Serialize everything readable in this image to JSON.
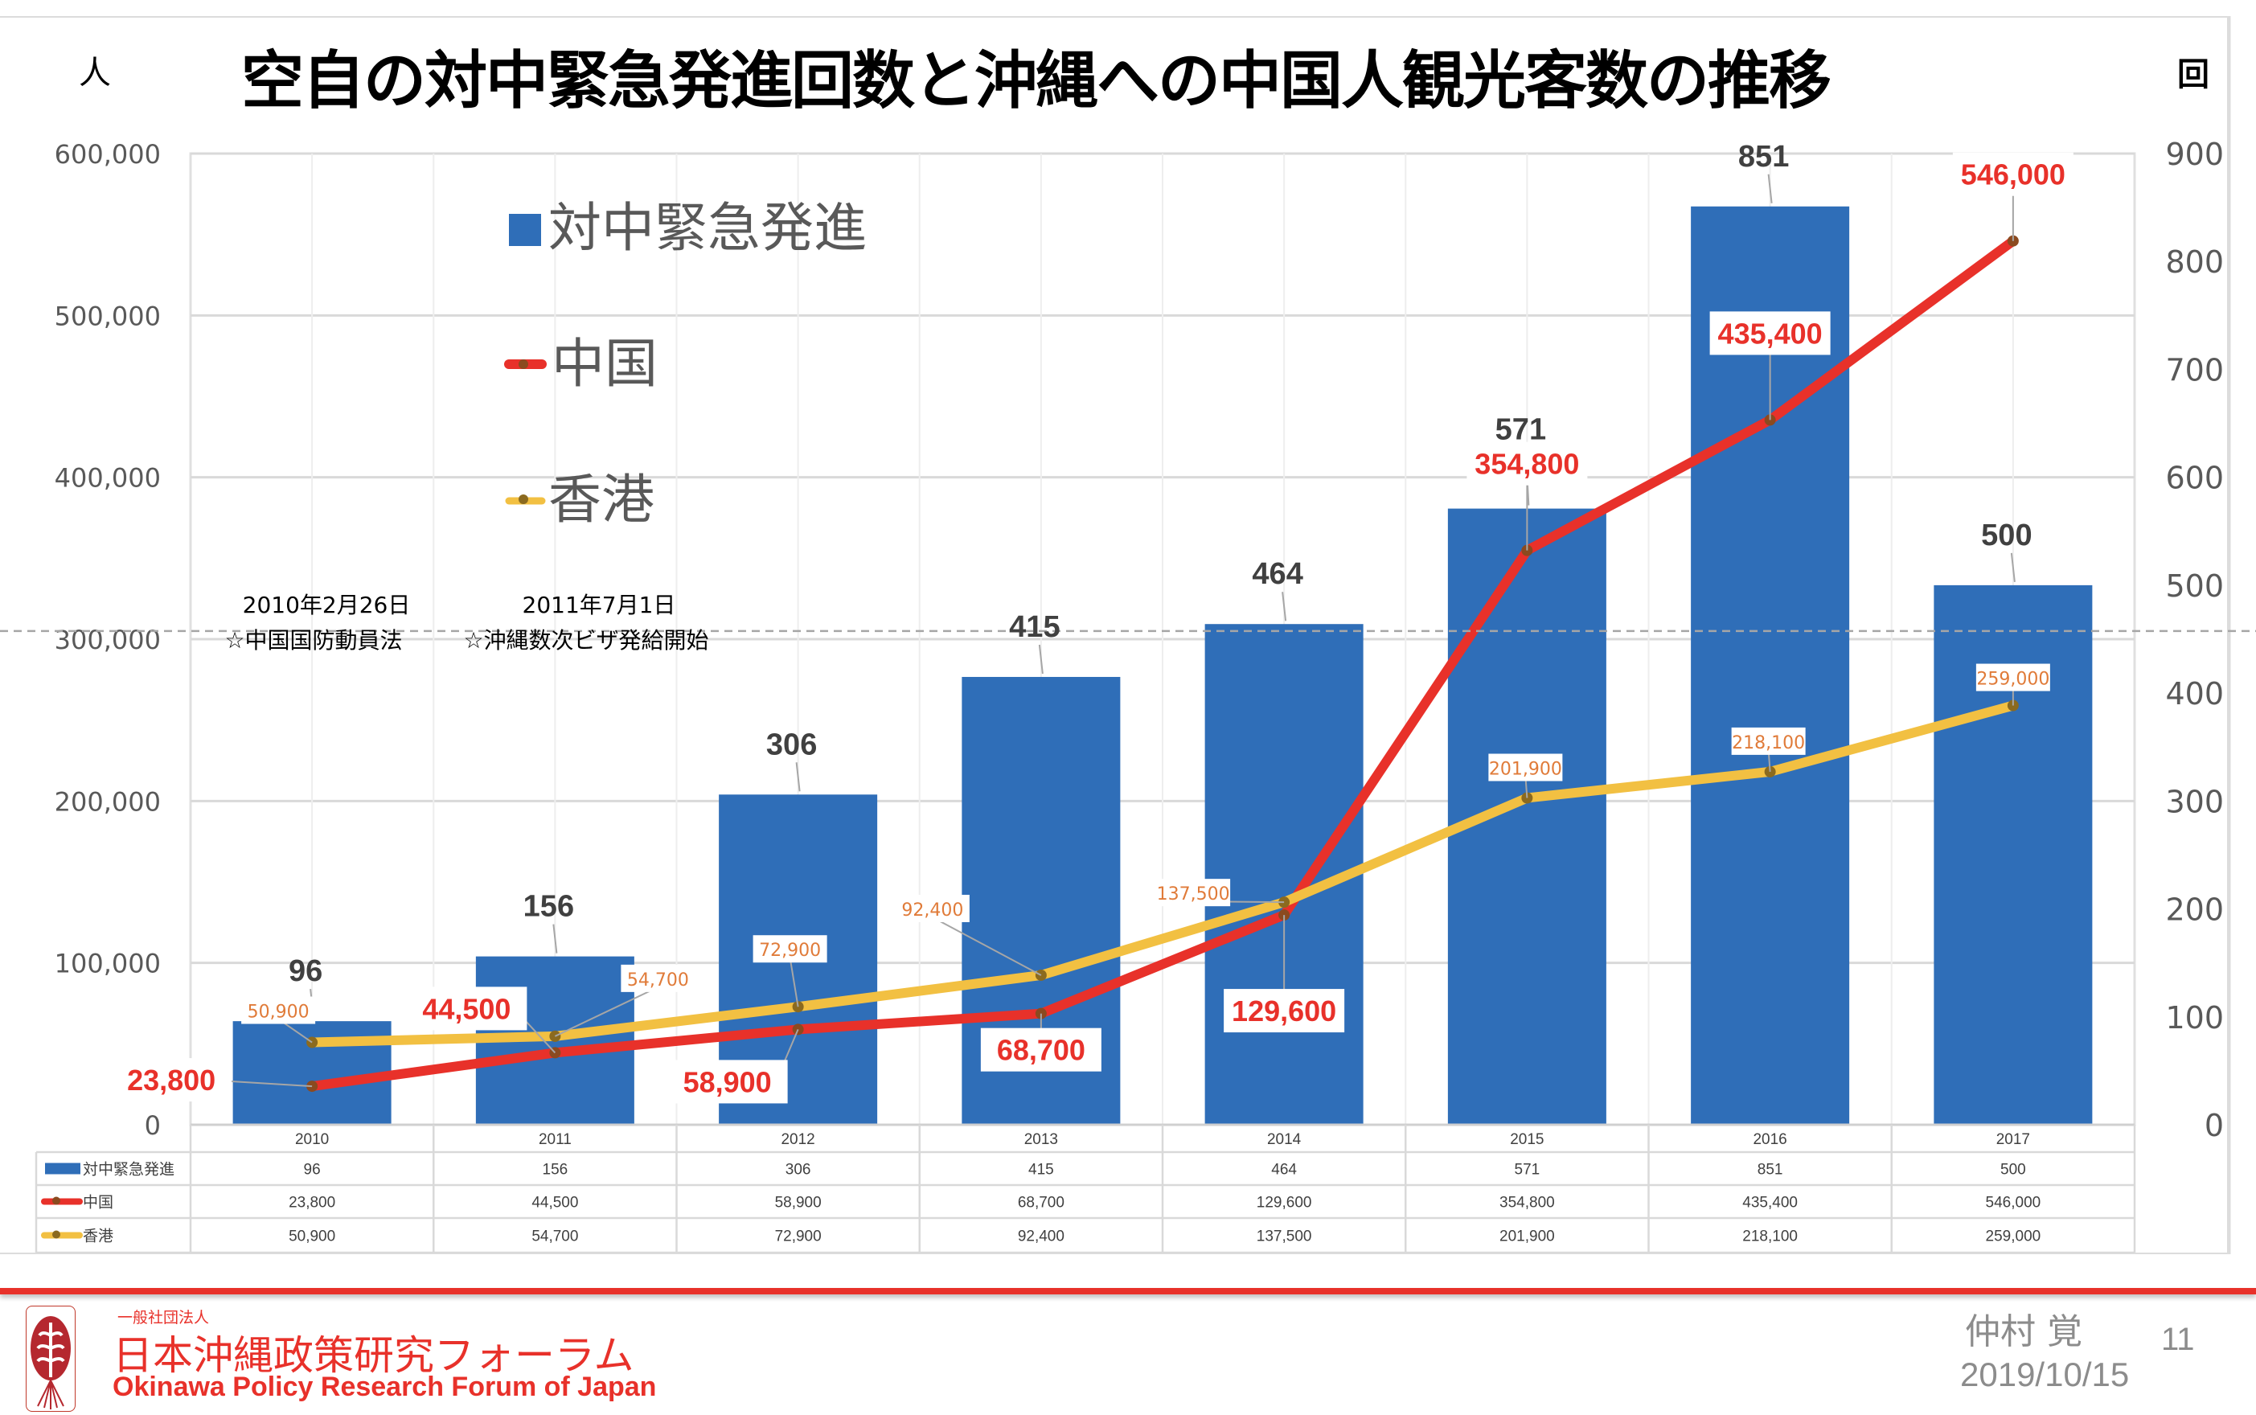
{
  "slide": {
    "title": "空自の対中緊急発進回数と沖縄への中国人観光客数の推移",
    "unit_left": "人",
    "unit_right": "回",
    "annotations": [
      {
        "date": "2010年2月26日",
        "text": "☆中国国防動員法",
        "category": "2010"
      },
      {
        "date": "2011年7月1日",
        "text": "☆沖縄数次ビザ発給開始",
        "category": "2011"
      }
    ],
    "footer": {
      "org_type": "一般社団法人",
      "org_name_ja": "日本沖縄政策研究フォーラム",
      "org_name_en": "Okinawa Policy Research Forum of Japan",
      "author": "仲村 覚",
      "date": "2019/10/15",
      "page_number": "11"
    }
  },
  "chart_data": {
    "type": "bar",
    "title": "空自の対中緊急発進回数と沖縄への中国人観光客数の推移",
    "xlabel": "",
    "ylabel": "人",
    "y2label": "回",
    "categories": [
      "2010",
      "2011",
      "2012",
      "2013",
      "2014",
      "2015",
      "2016",
      "2017"
    ],
    "ylim": [
      0,
      600000
    ],
    "y2lim": [
      0,
      900
    ],
    "y_ticks": [
      "0",
      "100,000",
      "200,000",
      "300,000",
      "400,000",
      "500,000",
      "600,000"
    ],
    "y2_ticks": [
      "0",
      "100",
      "200",
      "300",
      "400",
      "500",
      "600",
      "700",
      "800",
      "900"
    ],
    "grid": true,
    "legend_position": "top-left",
    "reference_line": {
      "style": "dashed",
      "y": 305000
    },
    "series": [
      {
        "name": "対中緊急発進",
        "type": "bar",
        "axis": "right",
        "color": "#2f6eb8",
        "values": [
          96,
          156,
          306,
          415,
          464,
          571,
          851,
          500
        ],
        "labels": [
          "96",
          "156",
          "306",
          "415",
          "464",
          "571",
          "851",
          "500"
        ]
      },
      {
        "name": "中国",
        "type": "line",
        "axis": "left",
        "color": "#e8312a",
        "values": [
          23800,
          44500,
          58900,
          68700,
          129600,
          354800,
          435400,
          546000
        ],
        "labels": [
          "23,800",
          "44,500",
          "58,900",
          "68,700",
          "129,600",
          "354,800",
          "435,400",
          "546,000"
        ]
      },
      {
        "name": "香港",
        "type": "line",
        "axis": "left",
        "color": "#f2c042",
        "values": [
          50900,
          54700,
          72900,
          92400,
          137500,
          201900,
          218100,
          259000
        ],
        "labels": [
          "50,900",
          "54,700",
          "72,900",
          "92,400",
          "137,500",
          "201,900",
          "218,100",
          "259,000"
        ]
      }
    ],
    "data_table": {
      "header": [
        "2010",
        "2011",
        "2012",
        "2013",
        "2014",
        "2015",
        "2016",
        "2017"
      ],
      "rows": [
        {
          "key": "対中緊急発進",
          "cells": [
            "96",
            "156",
            "306",
            "415",
            "464",
            "571",
            "851",
            "500"
          ]
        },
        {
          "key": "中国",
          "cells": [
            "23,800",
            "44,500",
            "58,900",
            "68,700",
            "129,600",
            "354,800",
            "435,400",
            "546,000"
          ]
        },
        {
          "key": "香港",
          "cells": [
            "50,900",
            "54,700",
            "72,900",
            "92,400",
            "137,500",
            "201,900",
            "218,100",
            "259,000"
          ]
        }
      ]
    }
  }
}
